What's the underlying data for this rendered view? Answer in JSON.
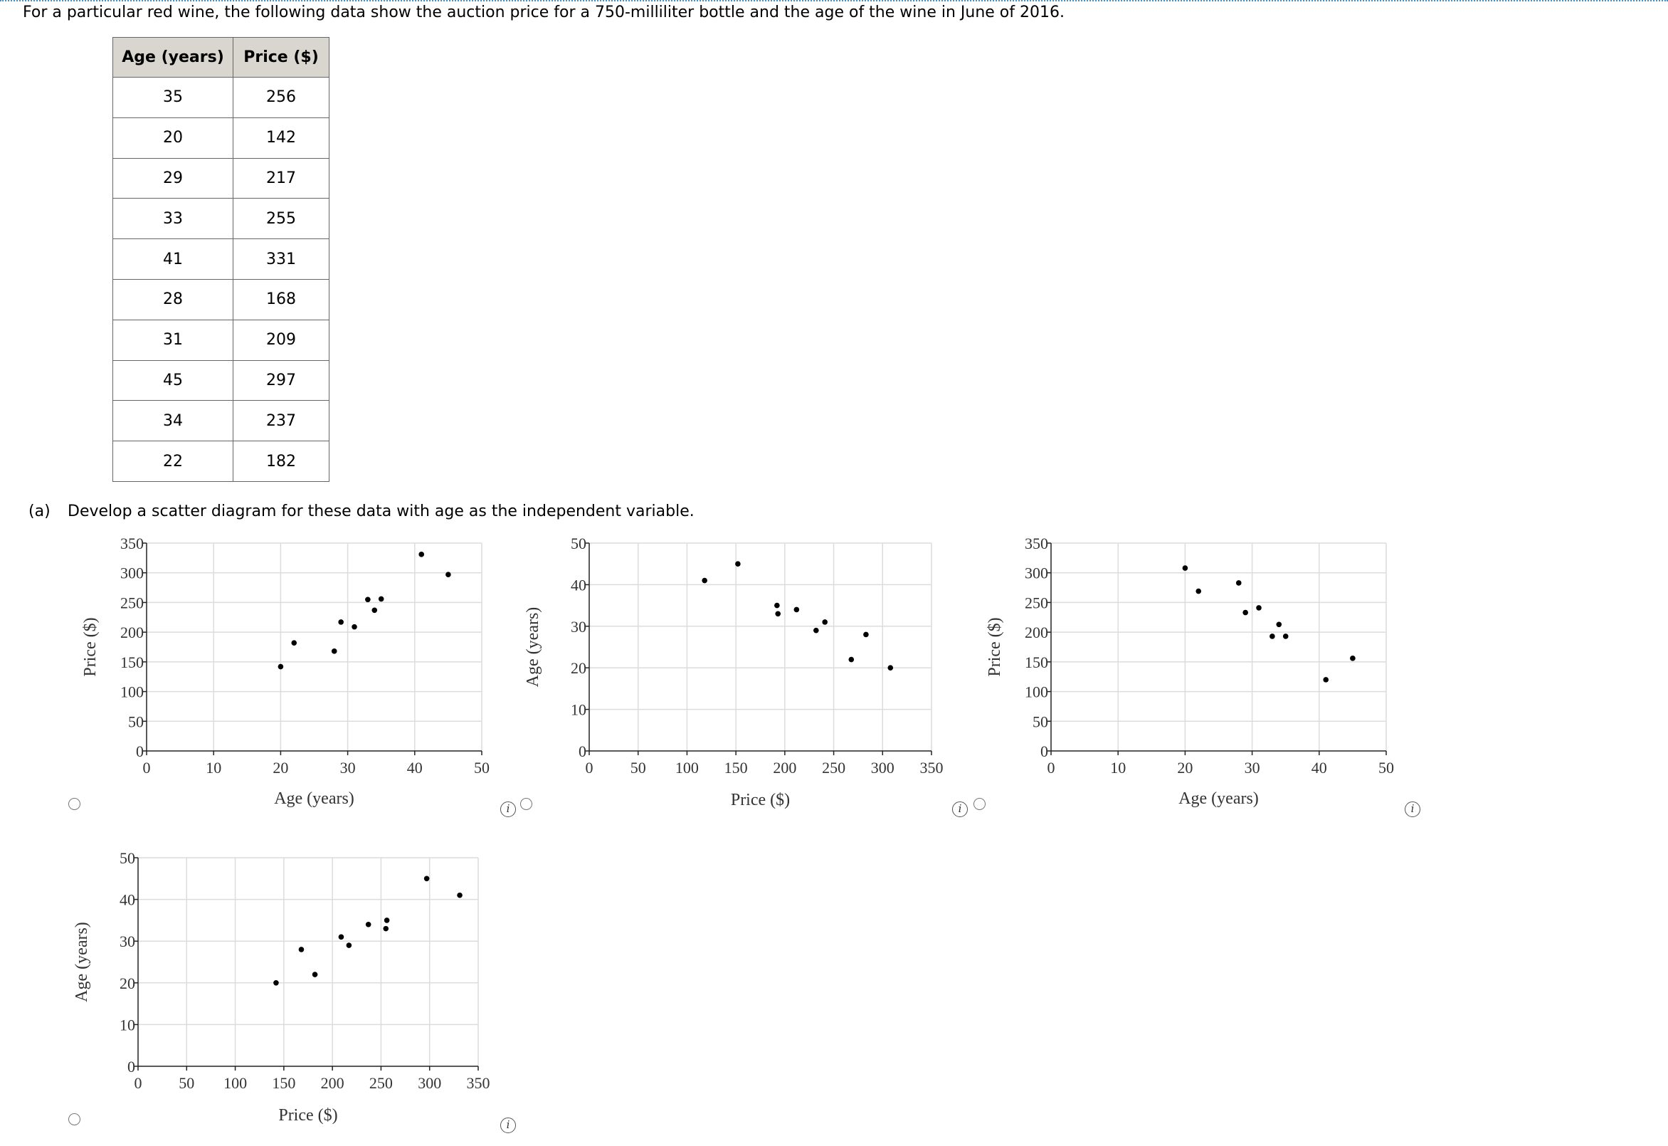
{
  "intro": "For a particular red wine, the following data show the auction price for a 750-milliliter bottle and the age of the wine in June of 2016.",
  "table": {
    "headers": [
      "Age (years)",
      "Price ($)"
    ],
    "rows": [
      [
        "35",
        "256"
      ],
      [
        "20",
        "142"
      ],
      [
        "29",
        "217"
      ],
      [
        "33",
        "255"
      ],
      [
        "41",
        "331"
      ],
      [
        "28",
        "168"
      ],
      [
        "31",
        "209"
      ],
      [
        "45",
        "297"
      ],
      [
        "34",
        "237"
      ],
      [
        "22",
        "182"
      ]
    ]
  },
  "part_a": {
    "label": "(a)",
    "text": "Develop a scatter diagram for these data with age as the independent variable."
  },
  "info_icon": "i",
  "chart_data": [
    {
      "type": "scatter",
      "xlabel": "Age (years)",
      "ylabel": "Price ($)",
      "xlim": [
        0,
        50
      ],
      "ylim": [
        0,
        350
      ],
      "xticks": [
        0,
        10,
        20,
        30,
        40,
        50
      ],
      "yticks": [
        0,
        50,
        100,
        150,
        200,
        250,
        300,
        350
      ],
      "points": [
        [
          20,
          142
        ],
        [
          22,
          182
        ],
        [
          28,
          168
        ],
        [
          29,
          217
        ],
        [
          31,
          209
        ],
        [
          33,
          255
        ],
        [
          34,
          237
        ],
        [
          35,
          256
        ],
        [
          41,
          331
        ],
        [
          45,
          297
        ]
      ]
    },
    {
      "type": "scatter",
      "xlabel": "Price ($)",
      "ylabel": "Age (years)",
      "xlim": [
        0,
        350
      ],
      "ylim": [
        0,
        50
      ],
      "xticks": [
        0,
        50,
        100,
        150,
        200,
        250,
        300,
        350
      ],
      "yticks": [
        0,
        10,
        20,
        30,
        40,
        50
      ],
      "points": [
        [
          118,
          41
        ],
        [
          152,
          45
        ],
        [
          192,
          35
        ],
        [
          193,
          33
        ],
        [
          212,
          34
        ],
        [
          232,
          29
        ],
        [
          241,
          31
        ],
        [
          268,
          22
        ],
        [
          283,
          28
        ],
        [
          308,
          20
        ]
      ]
    },
    {
      "type": "scatter",
      "xlabel": "Age (years)",
      "ylabel": "Price ($)",
      "xlim": [
        0,
        50
      ],
      "ylim": [
        0,
        350
      ],
      "xticks": [
        0,
        10,
        20,
        30,
        40,
        50
      ],
      "yticks": [
        0,
        50,
        100,
        150,
        200,
        250,
        300,
        350
      ],
      "points": [
        [
          20,
          308
        ],
        [
          22,
          269
        ],
        [
          28,
          283
        ],
        [
          29,
          233
        ],
        [
          31,
          241
        ],
        [
          33,
          193
        ],
        [
          34,
          213
        ],
        [
          35,
          193
        ],
        [
          41,
          120
        ],
        [
          45,
          156
        ]
      ]
    },
    {
      "type": "scatter",
      "xlabel": "Price ($)",
      "ylabel": "Age (years)",
      "xlim": [
        0,
        350
      ],
      "ylim": [
        0,
        50
      ],
      "xticks": [
        0,
        50,
        100,
        150,
        200,
        250,
        300,
        350
      ],
      "yticks": [
        0,
        10,
        20,
        30,
        40,
        50
      ],
      "points": [
        [
          142,
          20
        ],
        [
          168,
          28
        ],
        [
          182,
          22
        ],
        [
          209,
          31
        ],
        [
          217,
          29
        ],
        [
          237,
          34
        ],
        [
          255,
          33
        ],
        [
          256,
          35
        ],
        [
          297,
          45
        ],
        [
          331,
          41
        ]
      ]
    }
  ]
}
